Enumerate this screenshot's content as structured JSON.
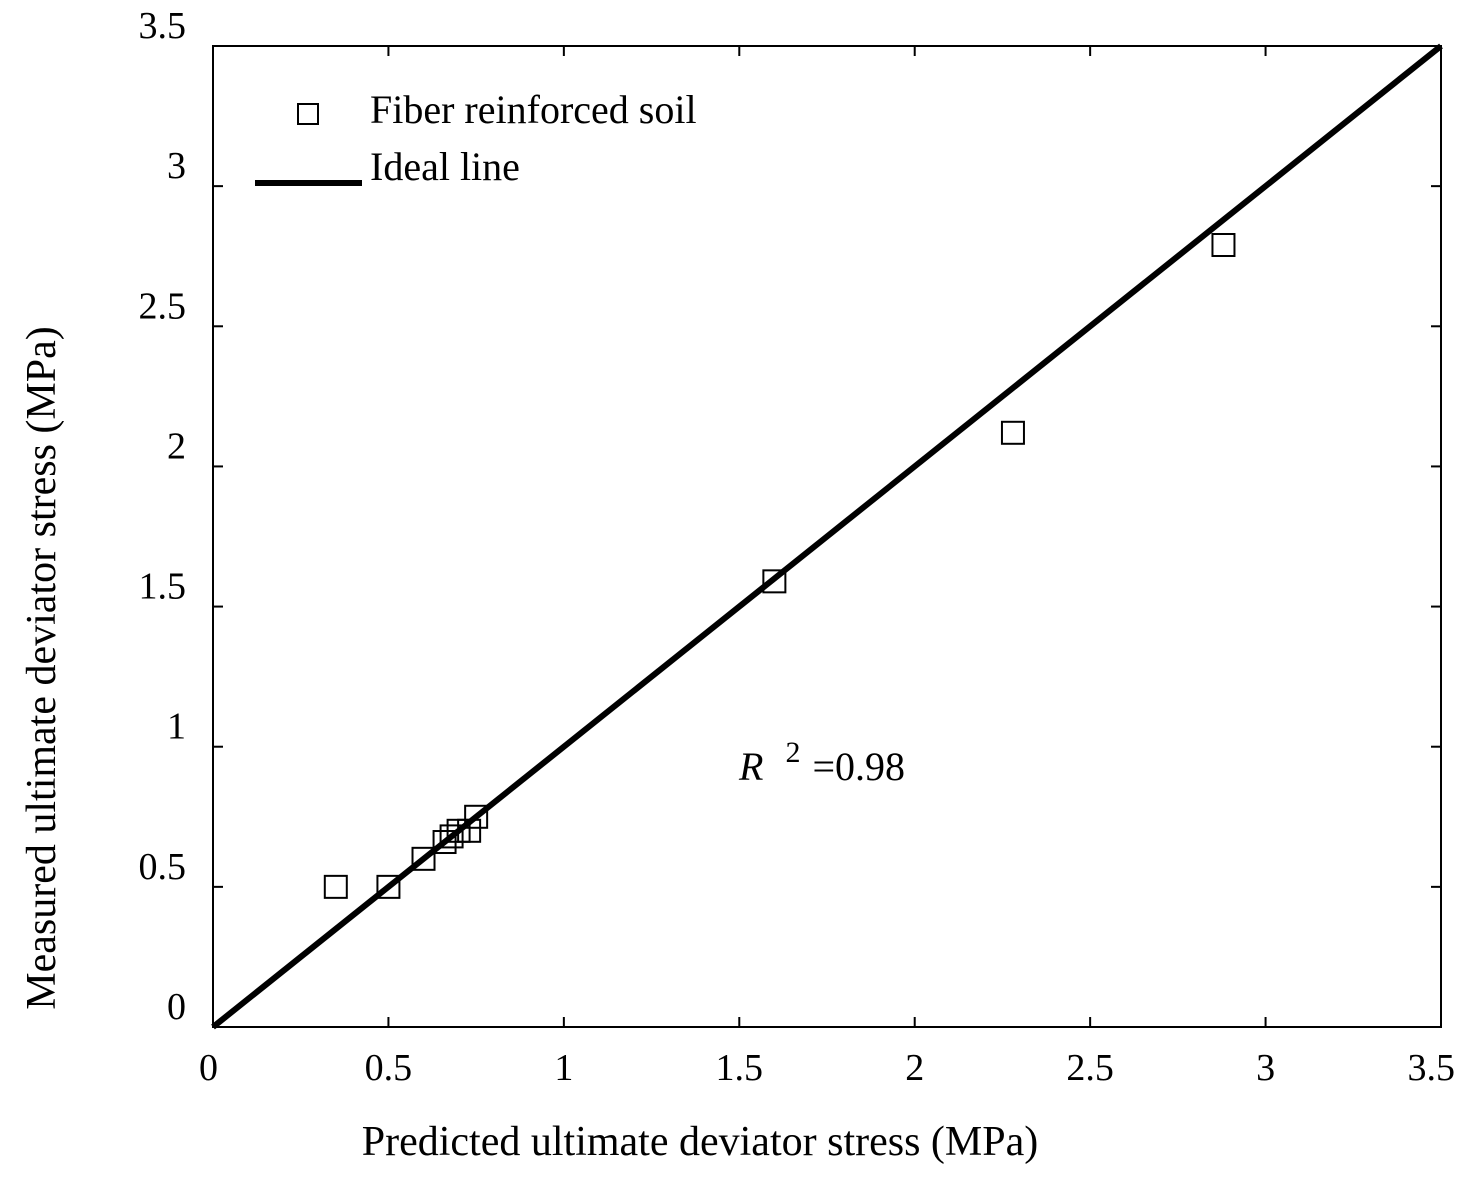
{
  "chart_data": {
    "type": "scatter",
    "xlabel": "Predicted ultimate deviator stress (MPa)",
    "ylabel": "Measured ultimate deviator stress (MPa)",
    "xlim": [
      0,
      3.5
    ],
    "ylim": [
      0,
      3.5
    ],
    "xticks": [
      "0",
      "0.5",
      "1",
      "1.5",
      "2",
      "2.5",
      "3",
      "3.5"
    ],
    "yticks": [
      "0",
      "0.5",
      "1",
      "1.5",
      "2",
      "2.5",
      "3",
      "3.5"
    ],
    "series": [
      {
        "name": "Fiber reinforced soil",
        "marker": "open-square",
        "points": [
          {
            "x": 0.35,
            "y": 0.5
          },
          {
            "x": 0.5,
            "y": 0.5
          },
          {
            "x": 0.6,
            "y": 0.6
          },
          {
            "x": 0.66,
            "y": 0.66
          },
          {
            "x": 0.68,
            "y": 0.68
          },
          {
            "x": 0.7,
            "y": 0.7
          },
          {
            "x": 0.73,
            "y": 0.7
          },
          {
            "x": 0.75,
            "y": 0.75
          },
          {
            "x": 1.6,
            "y": 1.59
          },
          {
            "x": 2.28,
            "y": 2.12
          },
          {
            "x": 2.88,
            "y": 2.79
          }
        ]
      },
      {
        "name": "Ideal line",
        "style": "line",
        "points": [
          {
            "x": 0,
            "y": 0
          },
          {
            "x": 3.5,
            "y": 3.5
          }
        ]
      }
    ],
    "annotation": {
      "symbol": "R",
      "superscript": "2",
      "value": "=0.98"
    },
    "legend_position": "top-left"
  }
}
